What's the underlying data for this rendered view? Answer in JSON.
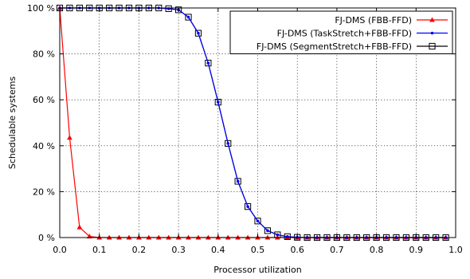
{
  "chart_data": {
    "type": "line",
    "title": "",
    "xlabel": "Processor utilization",
    "ylabel": "Schedulable systems",
    "xlim": [
      0.0,
      1.0
    ],
    "ylim": [
      0,
      100
    ],
    "xticks": [
      0.0,
      0.1,
      0.2,
      0.3,
      0.4,
      0.5,
      0.6,
      0.7,
      0.8,
      0.9,
      1.0
    ],
    "xtick_labels": [
      "0.0",
      "0.1",
      "0.2",
      "0.3",
      "0.4",
      "0.5",
      "0.6",
      "0.7",
      "0.8",
      "0.9",
      "1.0"
    ],
    "yticks": [
      0,
      20,
      40,
      60,
      80,
      100
    ],
    "ytick_labels": [
      "0 %",
      "20 %",
      "40 %",
      "60 %",
      "80 %",
      "100 %"
    ],
    "grid": true,
    "legend_position": "top-right",
    "x": [
      0.0,
      0.025,
      0.05,
      0.075,
      0.1,
      0.125,
      0.15,
      0.175,
      0.2,
      0.225,
      0.25,
      0.275,
      0.3,
      0.325,
      0.35,
      0.375,
      0.4,
      0.425,
      0.45,
      0.475,
      0.5,
      0.525,
      0.55,
      0.575,
      0.6,
      0.625,
      0.65,
      0.675,
      0.7,
      0.725,
      0.75,
      0.775,
      0.8,
      0.825,
      0.85,
      0.875,
      0.9,
      0.925,
      0.95,
      0.975
    ],
    "series": [
      {
        "name": "FJ-DMS (FBB-FFD)",
        "color": "#ff0000",
        "marker": "triangle",
        "values": [
          100,
          43.5,
          4.5,
          0.5,
          0,
          0,
          0,
          0,
          0,
          0,
          0,
          0,
          0,
          0,
          0,
          0,
          0,
          0,
          0,
          0,
          0,
          0,
          0,
          0,
          0,
          0,
          0,
          0,
          0,
          0,
          0,
          0,
          0,
          0,
          0,
          0,
          0,
          0,
          0,
          0
        ]
      },
      {
        "name": "FJ-DMS (TaskStretch+FBB-FFD)",
        "color": "#0000ff",
        "marker": "dot",
        "values": [
          100,
          100,
          100,
          100,
          100,
          100,
          100,
          100,
          100,
          100,
          100,
          99.7,
          99.2,
          96,
          89,
          76,
          59,
          41,
          24.5,
          13.5,
          7.2,
          3,
          1.2,
          0.4,
          0.1,
          0,
          0,
          0,
          0,
          0,
          0,
          0,
          0,
          0,
          0,
          0,
          0,
          0,
          0,
          0
        ]
      },
      {
        "name": "FJ-DMS (SegmentStretch+FBB-FFD)",
        "color": "#000000",
        "marker": "square",
        "values": [
          100,
          100,
          100,
          100,
          100,
          100,
          100,
          100,
          100,
          100,
          100,
          99.7,
          99.2,
          96,
          89,
          76,
          59,
          41,
          24.5,
          13.5,
          7.2,
          3,
          1.2,
          0.4,
          0.1,
          0,
          0,
          0,
          0,
          0,
          0,
          0,
          0,
          0,
          0,
          0,
          0,
          0,
          0,
          0
        ]
      }
    ]
  }
}
